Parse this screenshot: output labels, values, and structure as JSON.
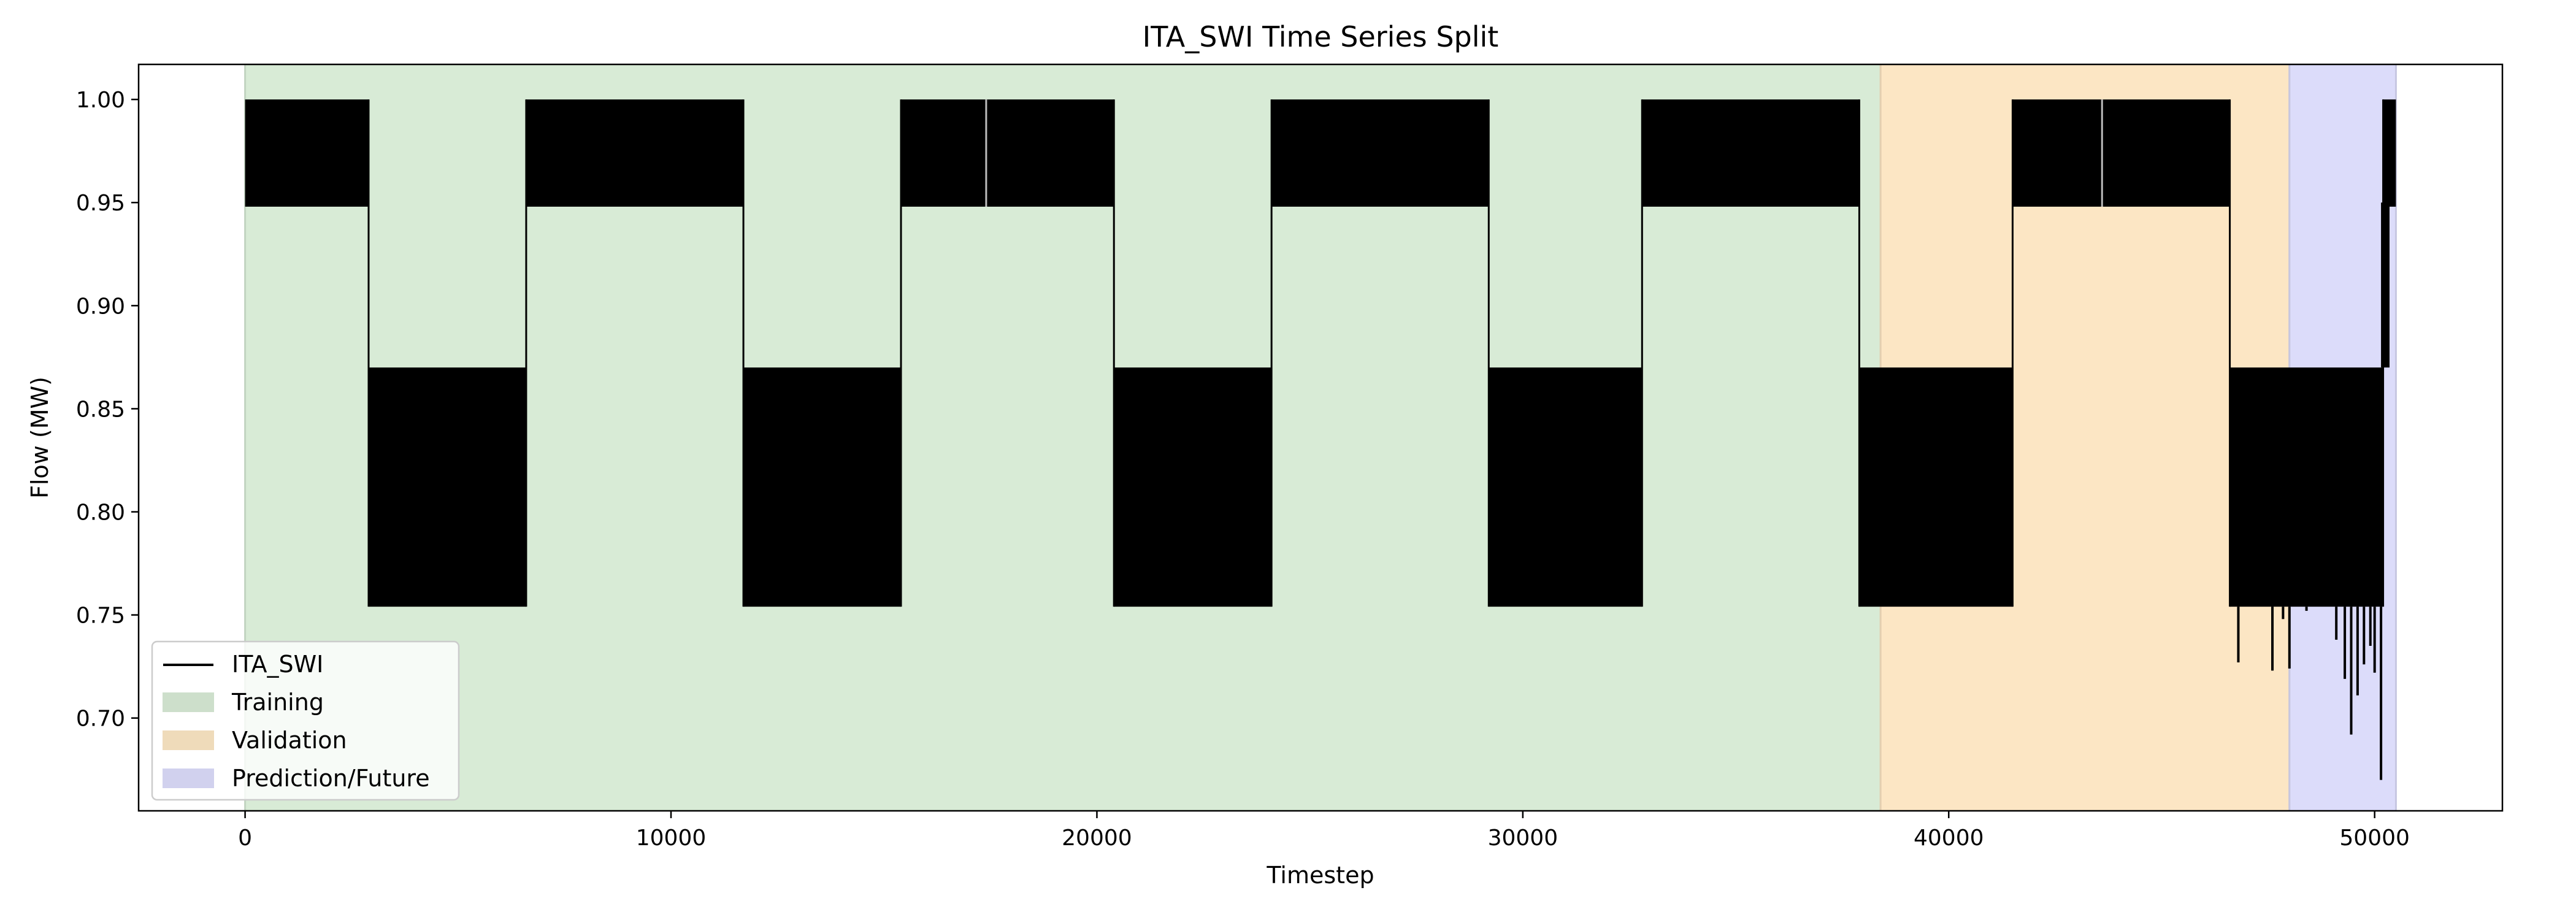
{
  "chart_data": {
    "type": "line",
    "title": "ITA_SWI Time Series Split",
    "xlabel": "Timestep",
    "ylabel": "Flow (MW)",
    "xlim": [
      -2500,
      53000
    ],
    "ylim": [
      0.655,
      1.017
    ],
    "xticks": [
      0,
      10000,
      20000,
      30000,
      40000,
      50000
    ],
    "xtick_labels": [
      "0",
      "10000",
      "20000",
      "30000",
      "40000",
      "50000"
    ],
    "yticks": [
      0.7,
      0.75,
      0.8,
      0.85,
      0.9,
      0.95,
      1.0
    ],
    "ytick_labels": [
      "0.70",
      "0.75",
      "0.80",
      "0.85",
      "0.90",
      "0.95",
      "1.00"
    ],
    "grid": false,
    "legend_position": "lower-left",
    "regions": [
      {
        "name": "Training",
        "start": 0,
        "end": 38400,
        "color": "#d8ebd6"
      },
      {
        "name": "Validation",
        "start": 38400,
        "end": 48000,
        "color": "#fce6c4"
      },
      {
        "name": "Prediction/Future",
        "start": 48000,
        "end": 50500,
        "color": "#dcdcfa"
      }
    ],
    "series": [
      {
        "name": "ITA_SWI",
        "color": "#000000",
        "description_segments": [
          {
            "x_start": 0,
            "x_end": 2900,
            "low": 0.948,
            "high": 1.0
          },
          {
            "x_start": 2900,
            "x_end": 6600,
            "low": 0.754,
            "high": 0.87
          },
          {
            "x_start": 6600,
            "x_end": 11700,
            "low": 0.948,
            "high": 1.0
          },
          {
            "x_start": 11700,
            "x_end": 15400,
            "low": 0.754,
            "high": 0.87
          },
          {
            "x_start": 15400,
            "x_end": 20400,
            "low": 0.948,
            "high": 1.0
          },
          {
            "x_start": 20400,
            "x_end": 24100,
            "low": 0.754,
            "high": 0.87
          },
          {
            "x_start": 24100,
            "x_end": 29200,
            "low": 0.948,
            "high": 1.0
          },
          {
            "x_start": 29200,
            "x_end": 32800,
            "low": 0.754,
            "high": 0.87
          },
          {
            "x_start": 32800,
            "x_end": 37900,
            "low": 0.948,
            "high": 1.0
          },
          {
            "x_start": 37900,
            "x_end": 41500,
            "low": 0.754,
            "high": 0.87
          },
          {
            "x_start": 41500,
            "x_end": 46600,
            "low": 0.948,
            "high": 1.0
          },
          {
            "x_start": 46600,
            "x_end": 50200,
            "low": 0.754,
            "high": 0.87
          },
          {
            "x_start": 50200,
            "x_end": 50500,
            "low": 0.948,
            "high": 1.0
          }
        ],
        "spikes": [
          {
            "x": 46800,
            "y": 0.727
          },
          {
            "x": 47600,
            "y": 0.723
          },
          {
            "x": 47850,
            "y": 0.748
          },
          {
            "x": 48000,
            "y": 0.724
          },
          {
            "x": 48400,
            "y": 0.752
          },
          {
            "x": 49100,
            "y": 0.738
          },
          {
            "x": 49300,
            "y": 0.719
          },
          {
            "x": 49450,
            "y": 0.692
          },
          {
            "x": 49600,
            "y": 0.711
          },
          {
            "x": 49750,
            "y": 0.726
          },
          {
            "x": 49900,
            "y": 0.735
          },
          {
            "x": 50000,
            "y": 0.722
          },
          {
            "x": 50150,
            "y": 0.67
          }
        ]
      }
    ],
    "legend": [
      "ITA_SWI",
      "Training",
      "Validation",
      "Prediction/Future"
    ]
  }
}
